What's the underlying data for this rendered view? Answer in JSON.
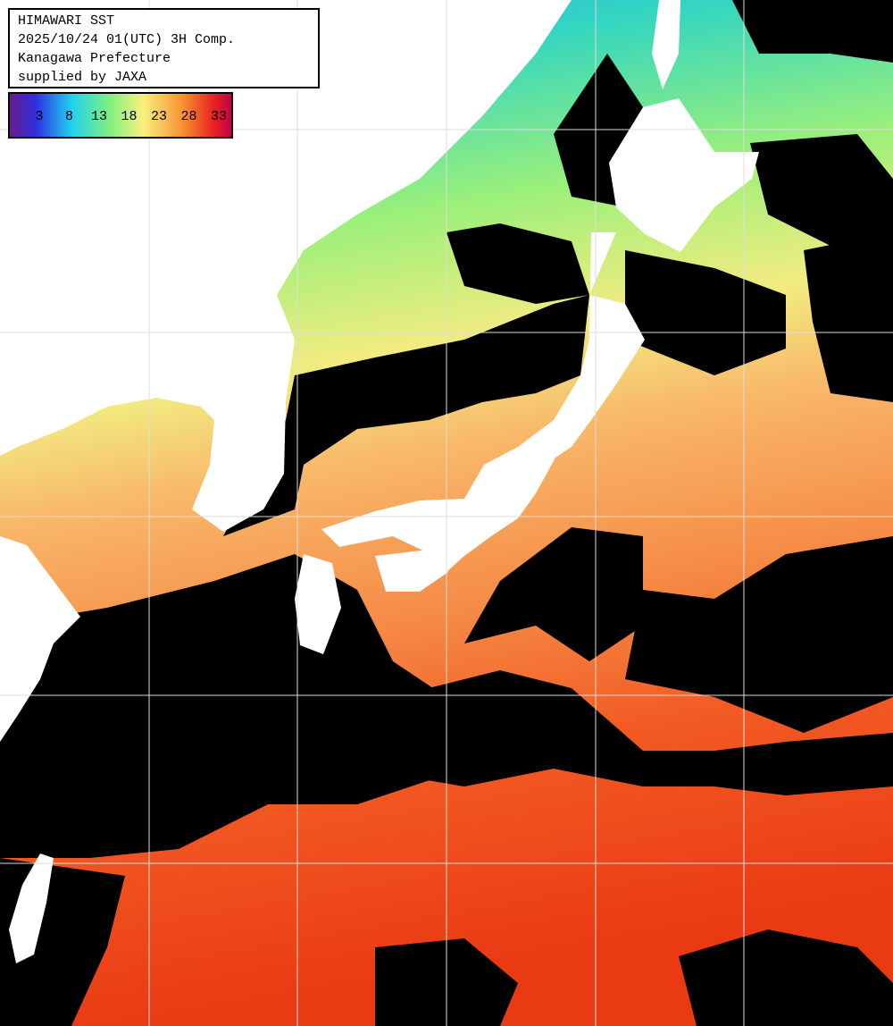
{
  "header": {
    "title": "HIMAWARI SST",
    "datetime": "2025/10/24 01(UTC) 3H Comp.",
    "region": "Kanagawa Prefecture",
    "credit": "supplied by JAXA"
  },
  "colorbar": {
    "ticks": [
      3,
      8,
      13,
      18,
      23,
      28,
      33
    ]
  }
}
